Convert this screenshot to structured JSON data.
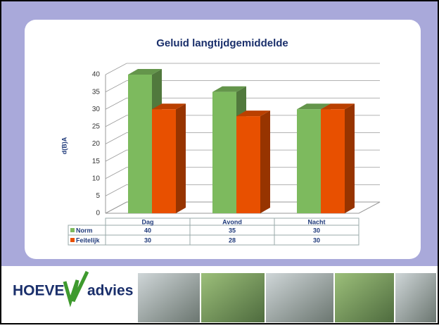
{
  "chart_data": {
    "type": "bar3d",
    "title": "Geluid langtijdgemiddelde",
    "y_label": "d(B)A",
    "categories": [
      "Dag",
      "Avond",
      "Nacht"
    ],
    "series": [
      {
        "name": "Norm",
        "color": "#7dba5e",
        "values": [
          40,
          35,
          30
        ]
      },
      {
        "name": "Feitelijk",
        "color": "#e85000",
        "values": [
          30,
          28,
          30
        ]
      }
    ],
    "ylim": [
      0,
      40
    ],
    "yticks": [
      0,
      5,
      10,
      15,
      20,
      25,
      30,
      35,
      40
    ],
    "grid": true,
    "data_table": true
  },
  "footer": {
    "logo_left": "HOEVE",
    "logo_right": "advies"
  }
}
